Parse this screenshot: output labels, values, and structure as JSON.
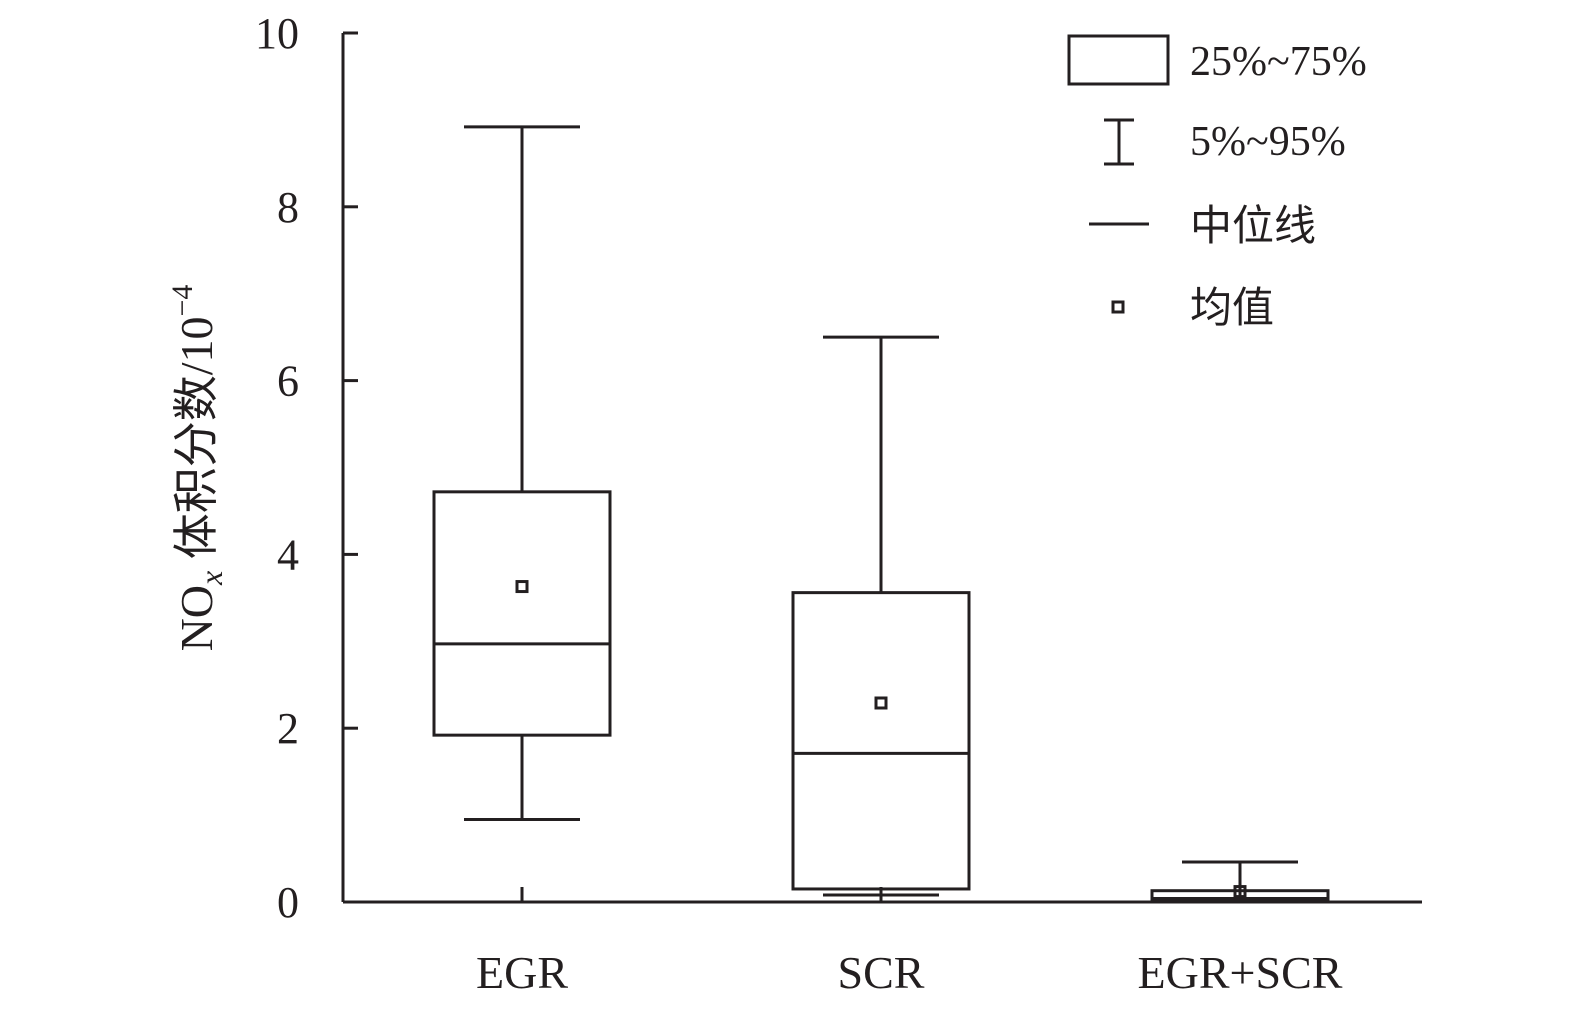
{
  "chart_data": {
    "type": "box",
    "title": "",
    "xlabel": "",
    "ylabel": {
      "main": "NO",
      "subscript": "x",
      "rest": " 体积分数/10",
      "superscript": "−4"
    },
    "ylim": [
      0,
      10
    ],
    "yticks": [
      "0",
      "2",
      "4",
      "6",
      "8",
      "10"
    ],
    "grid": false,
    "legend_position": "top-right",
    "categories": [
      "EGR",
      "SCR",
      "EGR+SCR"
    ],
    "series": [
      {
        "category": "EGR",
        "p5": 0.95,
        "q1": 1.92,
        "median": 2.97,
        "q3": 4.72,
        "p95": 8.92,
        "mean": 3.63
      },
      {
        "category": "SCR",
        "p5": 0.08,
        "q1": 0.15,
        "median": 1.71,
        "q3": 3.56,
        "p95": 6.5,
        "mean": 2.29
      },
      {
        "category": "EGR+SCR",
        "p5": 0.01,
        "q1": 0.02,
        "median": 0.04,
        "q3": 0.13,
        "p95": 0.46,
        "mean": 0.12
      }
    ],
    "legend": [
      {
        "symbol": "box",
        "label": "25%~75%"
      },
      {
        "symbol": "whisker",
        "label": "5%~95%"
      },
      {
        "symbol": "median-line",
        "label": "中位线"
      },
      {
        "symbol": "mean-marker",
        "label": "均值"
      }
    ],
    "colors": {
      "stroke": "#231f20",
      "background": "#ffffff"
    }
  }
}
